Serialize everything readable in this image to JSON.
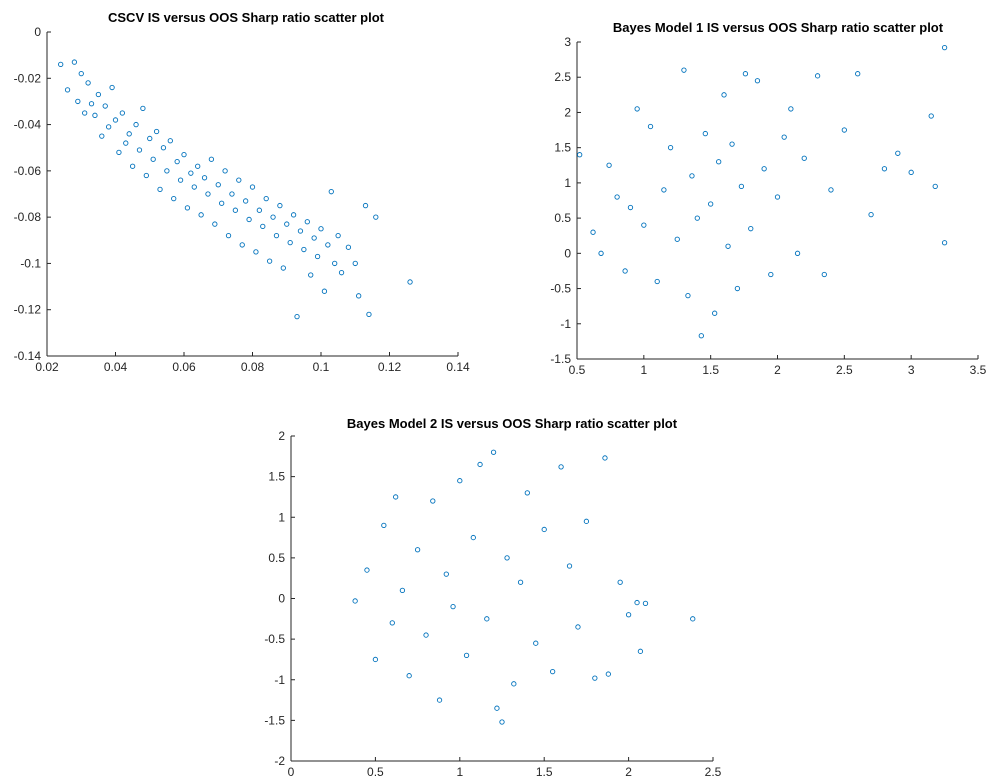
{
  "figure": {
    "background": "#ffffff"
  },
  "chart_data": [
    {
      "type": "scatter",
      "title": "CSCV IS versus OOS Sharp ratio scatter plot",
      "xlabel": "",
      "ylabel": "",
      "xlim": [
        0.02,
        0.14
      ],
      "ylim": [
        -0.14,
        0
      ],
      "xticks": [
        0.02,
        0.04,
        0.06,
        0.08,
        0.1,
        0.12,
        0.14
      ],
      "xtick_labels": [
        "0.02",
        "0.04",
        "0.06",
        "0.08",
        "0.1",
        "0.12",
        "0.14"
      ],
      "yticks": [
        -0.14,
        -0.12,
        -0.1,
        -0.08,
        -0.06,
        -0.04,
        -0.02,
        0
      ],
      "ytick_labels": [
        "-0.14",
        "-0.12",
        "-0.1",
        "-0.08",
        "-0.06",
        "-0.04",
        "-0.02",
        "0"
      ],
      "marker": "o",
      "color": "#0072BD",
      "grid": false,
      "series": [
        {
          "x": [
            0.024,
            0.026,
            0.028,
            0.029,
            0.03,
            0.031,
            0.032,
            0.033,
            0.034,
            0.035,
            0.036,
            0.037,
            0.038,
            0.039,
            0.04,
            0.041,
            0.042,
            0.043,
            0.044,
            0.045,
            0.046,
            0.047,
            0.048,
            0.049,
            0.05,
            0.051,
            0.052,
            0.053,
            0.054,
            0.055,
            0.056,
            0.057,
            0.058,
            0.059,
            0.06,
            0.061,
            0.062,
            0.063,
            0.064,
            0.065,
            0.066,
            0.067,
            0.068,
            0.069,
            0.07,
            0.071,
            0.072,
            0.073,
            0.074,
            0.075,
            0.076,
            0.077,
            0.078,
            0.079,
            0.08,
            0.081,
            0.082,
            0.083,
            0.084,
            0.085,
            0.086,
            0.087,
            0.088,
            0.089,
            0.09,
            0.091,
            0.092,
            0.093,
            0.094,
            0.095,
            0.096,
            0.097,
            0.098,
            0.099,
            0.1,
            0.101,
            0.102,
            0.103,
            0.104,
            0.105,
            0.106,
            0.108,
            0.11,
            0.111,
            0.113,
            0.114,
            0.116,
            0.126
          ],
          "y": [
            -0.014,
            -0.025,
            -0.013,
            -0.03,
            -0.018,
            -0.035,
            -0.022,
            -0.031,
            -0.036,
            -0.027,
            -0.045,
            -0.032,
            -0.041,
            -0.024,
            -0.038,
            -0.052,
            -0.035,
            -0.048,
            -0.044,
            -0.058,
            -0.04,
            -0.051,
            -0.033,
            -0.062,
            -0.046,
            -0.055,
            -0.043,
            -0.068,
            -0.05,
            -0.06,
            -0.047,
            -0.072,
            -0.056,
            -0.064,
            -0.053,
            -0.076,
            -0.061,
            -0.067,
            -0.058,
            -0.079,
            -0.063,
            -0.07,
            -0.055,
            -0.083,
            -0.066,
            -0.074,
            -0.06,
            -0.088,
            -0.07,
            -0.077,
            -0.064,
            -0.092,
            -0.073,
            -0.081,
            -0.067,
            -0.095,
            -0.077,
            -0.084,
            -0.072,
            -0.099,
            -0.08,
            -0.088,
            -0.075,
            -0.102,
            -0.083,
            -0.091,
            -0.079,
            -0.123,
            -0.086,
            -0.094,
            -0.082,
            -0.105,
            -0.089,
            -0.097,
            -0.085,
            -0.112,
            -0.092,
            -0.069,
            -0.1,
            -0.088,
            -0.104,
            -0.093,
            -0.1,
            -0.114,
            -0.075,
            -0.122,
            -0.08,
            -0.108
          ]
        }
      ]
    },
    {
      "type": "scatter",
      "title": "Bayes Model 1 IS versus OOS Sharp ratio scatter plot",
      "xlabel": "",
      "ylabel": "",
      "xlim": [
        0.5,
        3.5
      ],
      "ylim": [
        -1.5,
        3
      ],
      "xticks": [
        0.5,
        1,
        1.5,
        2,
        2.5,
        3,
        3.5
      ],
      "xtick_labels": [
        "0.5",
        "1",
        "1.5",
        "2",
        "2.5",
        "3",
        "3.5"
      ],
      "yticks": [
        -1.5,
        -1,
        -0.5,
        0,
        0.5,
        1,
        1.5,
        2,
        2.5,
        3
      ],
      "ytick_labels": [
        "-1.5",
        "-1",
        "-0.5",
        "0",
        "0.5",
        "1",
        "1.5",
        "2",
        "2.5",
        "3"
      ],
      "marker": "o",
      "color": "#0072BD",
      "grid": false,
      "series": [
        {
          "x": [
            0.52,
            0.62,
            0.68,
            0.74,
            0.8,
            0.86,
            0.9,
            0.95,
            1.0,
            1.05,
            1.1,
            1.15,
            1.2,
            1.25,
            1.3,
            1.33,
            1.36,
            1.4,
            1.43,
            1.46,
            1.5,
            1.53,
            1.56,
            1.6,
            1.63,
            1.66,
            1.7,
            1.73,
            1.76,
            1.8,
            1.85,
            1.9,
            1.95,
            2.0,
            2.05,
            2.1,
            2.15,
            2.2,
            2.3,
            2.35,
            2.4,
            2.5,
            2.6,
            2.7,
            2.8,
            2.9,
            3.0,
            3.15,
            3.18,
            3.25,
            3.25
          ],
          "y": [
            1.4,
            0.3,
            0.0,
            1.25,
            0.8,
            -0.25,
            0.65,
            2.05,
            0.4,
            1.8,
            -0.4,
            0.9,
            1.5,
            0.2,
            2.6,
            -0.6,
            1.1,
            0.5,
            -1.17,
            1.7,
            0.7,
            -0.85,
            1.3,
            2.25,
            0.1,
            1.55,
            -0.5,
            0.95,
            2.55,
            0.35,
            2.45,
            1.2,
            -0.3,
            0.8,
            1.65,
            2.05,
            0.0,
            1.35,
            2.52,
            -0.3,
            0.9,
            1.75,
            2.55,
            0.55,
            1.2,
            1.42,
            1.15,
            1.95,
            0.95,
            0.15,
            2.92
          ]
        }
      ]
    },
    {
      "type": "scatter",
      "title": "Bayes Model 2 IS versus OOS Sharp ratio scatter plot",
      "xlabel": "",
      "ylabel": "",
      "xlim": [
        0,
        2.5
      ],
      "ylim": [
        -2,
        2
      ],
      "xticks": [
        0,
        0.5,
        1,
        1.5,
        2,
        2.5
      ],
      "xtick_labels": [
        "0",
        "0.5",
        "1",
        "1.5",
        "2",
        "2.5"
      ],
      "yticks": [
        -2,
        -1.5,
        -1,
        -0.5,
        0,
        0.5,
        1,
        1.5,
        2
      ],
      "ytick_labels": [
        "-2",
        "-1.5",
        "-1",
        "-0.5",
        "0",
        "0.5",
        "1",
        "1.5",
        "2"
      ],
      "marker": "o",
      "color": "#0072BD",
      "grid": false,
      "series": [
        {
          "x": [
            0.38,
            0.45,
            0.5,
            0.55,
            0.6,
            0.62,
            0.66,
            0.7,
            0.75,
            0.8,
            0.84,
            0.88,
            0.92,
            0.96,
            1.0,
            1.04,
            1.08,
            1.12,
            1.16,
            1.2,
            1.22,
            1.25,
            1.28,
            1.32,
            1.36,
            1.4,
            1.45,
            1.5,
            1.55,
            1.6,
            1.65,
            1.7,
            1.75,
            1.8,
            1.86,
            1.88,
            1.95,
            2.0,
            2.05,
            2.07,
            2.1,
            2.38
          ],
          "y": [
            -0.03,
            0.35,
            -0.75,
            0.9,
            -0.3,
            1.25,
            0.1,
            -0.95,
            0.6,
            -0.45,
            1.2,
            -1.25,
            0.3,
            -0.1,
            1.45,
            -0.7,
            0.75,
            1.65,
            -0.25,
            1.8,
            -1.35,
            -1.52,
            0.5,
            -1.05,
            0.2,
            1.3,
            -0.55,
            0.85,
            -0.9,
            1.62,
            0.4,
            -0.35,
            0.95,
            -0.98,
            1.73,
            -0.93,
            0.2,
            -0.2,
            -0.05,
            -0.65,
            -0.06,
            -0.25
          ]
        }
      ]
    }
  ]
}
